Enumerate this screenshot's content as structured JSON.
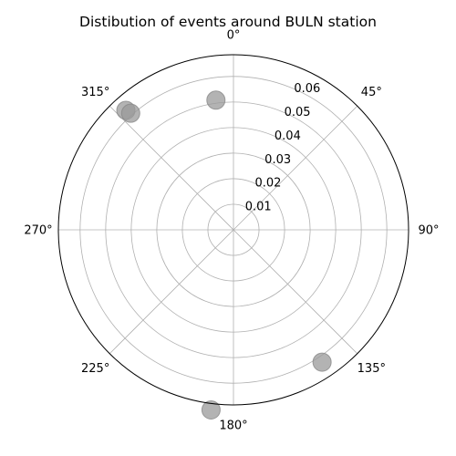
{
  "chart_data": {
    "type": "scatter",
    "projection": "polar",
    "title": "Distibution of events around BULN station",
    "theta_direction": "clockwise",
    "theta_zero": "north",
    "theta_ticks": [
      "0°",
      "45°",
      "90°",
      "135°",
      "180°",
      "225°",
      "270°",
      "315°"
    ],
    "r_ticks": [
      "0.01",
      "0.02",
      "0.03",
      "0.04",
      "0.05",
      "0.06"
    ],
    "rlim": [
      0,
      0.0685
    ],
    "grid": true,
    "legend": "none",
    "marker_color": "#999999",
    "marker_alpha": 0.75,
    "points": [
      {
        "theta_deg": 352.3,
        "r": 0.0512
      },
      {
        "theta_deg": 318.0,
        "r": 0.0629
      },
      {
        "theta_deg": 318.6,
        "r": 0.0608
      },
      {
        "theta_deg": 146.2,
        "r": 0.0623
      },
      {
        "theta_deg": 187.1,
        "r": 0.071
      }
    ]
  }
}
